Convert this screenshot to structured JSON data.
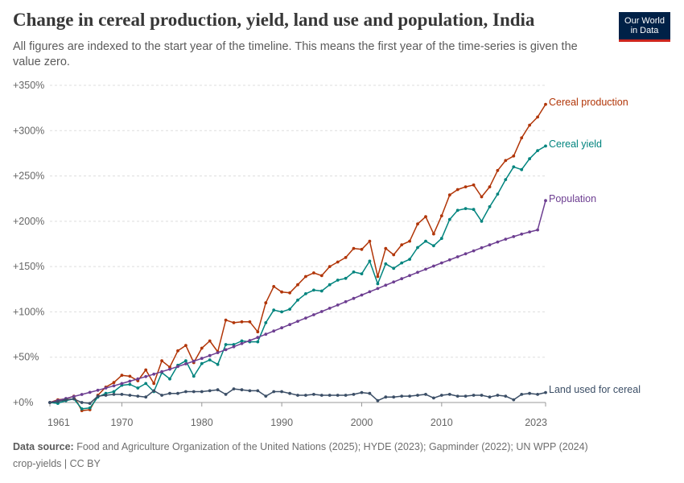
{
  "header": {
    "title": "Change in cereal production, yield, land use and population, India",
    "subtitle": "All figures are indexed to the start year of the timeline. This means the first year of the time-series is given the value zero.",
    "logo_line1": "Our World",
    "logo_line2": "in Data"
  },
  "footer": {
    "source_label": "Data source:",
    "source_text": "Food and Agriculture Organization of the United Nations (2025); HYDE (2023); Gapminder (2022); UN WPP (2024)",
    "credit": "crop-yields | CC BY"
  },
  "chart_data": {
    "type": "line",
    "title": "Change in cereal production, yield, land use and population, India",
    "xlabel": "",
    "ylabel": "",
    "xlim": [
      1961,
      2023
    ],
    "ylim": [
      0,
      350
    ],
    "x_ticks": [
      1961,
      1970,
      1980,
      1990,
      2000,
      2010,
      2023
    ],
    "x_tick_labels": [
      "1961",
      "1970",
      "1980",
      "1990",
      "2000",
      "2010",
      "2023"
    ],
    "y_ticks": [
      0,
      50,
      100,
      150,
      200,
      250,
      300,
      350
    ],
    "y_tick_labels": [
      "+0%",
      "+50%",
      "+100%",
      "+150%",
      "+200%",
      "+250%",
      "+300%",
      "+350%"
    ],
    "grid": "horizontal-dashed",
    "legend": "inline-right",
    "years": [
      1961,
      1962,
      1963,
      1964,
      1965,
      1966,
      1967,
      1968,
      1969,
      1970,
      1971,
      1972,
      1973,
      1974,
      1975,
      1976,
      1977,
      1978,
      1979,
      1980,
      1981,
      1982,
      1983,
      1984,
      1985,
      1986,
      1987,
      1988,
      1989,
      1990,
      1991,
      1992,
      1993,
      1994,
      1995,
      1996,
      1997,
      1998,
      1999,
      2000,
      2001,
      2002,
      2003,
      2004,
      2005,
      2006,
      2007,
      2008,
      2009,
      2010,
      2011,
      2012,
      2013,
      2014,
      2015,
      2016,
      2017,
      2018,
      2019,
      2020,
      2021,
      2022,
      2023
    ],
    "series": [
      {
        "name": "Cereal production",
        "color": "#b13507",
        "values": [
          0,
          3,
          4,
          7,
          -9,
          -8,
          8,
          17,
          22,
          30,
          29,
          24,
          36,
          21,
          46,
          39,
          57,
          63,
          44,
          60,
          68,
          56,
          91,
          88,
          89,
          89,
          78,
          110,
          128,
          122,
          121,
          130,
          139,
          143,
          140,
          150,
          155,
          160,
          170,
          169,
          178,
          139,
          170,
          163,
          174,
          178,
          197,
          205,
          186,
          206,
          229,
          235,
          238,
          240,
          227,
          238,
          256,
          267,
          272,
          292,
          306,
          315,
          329
        ]
      },
      {
        "name": "Cereal yield",
        "color": "#00847e",
        "values": [
          0,
          -1,
          2,
          4,
          -7,
          -6,
          6,
          10,
          12,
          19,
          20,
          16,
          21,
          12,
          33,
          26,
          41,
          46,
          29,
          43,
          47,
          42,
          64,
          64,
          68,
          67,
          67,
          88,
          102,
          100,
          103,
          113,
          120,
          124,
          123,
          130,
          135,
          137,
          144,
          142,
          156,
          131,
          153,
          148,
          154,
          158,
          171,
          178,
          173,
          181,
          202,
          212,
          214,
          213,
          200,
          216,
          230,
          246,
          260,
          257,
          269,
          278,
          283
        ]
      },
      {
        "name": "Population",
        "color": "#6d3e91",
        "values": [
          0,
          2.2,
          4.4,
          6.7,
          8.9,
          11.2,
          13.5,
          16,
          18.4,
          21,
          23.5,
          26,
          28.6,
          31.3,
          34,
          36.8,
          39.7,
          42.6,
          45.6,
          48.7,
          51.8,
          55,
          58.3,
          61.6,
          65,
          68.4,
          71.8,
          75.3,
          78.9,
          82.4,
          86,
          89.6,
          93.2,
          96.8,
          100.4,
          104,
          107.6,
          111.2,
          114.9,
          118.6,
          122.2,
          125.8,
          129.4,
          133,
          136.6,
          140.1,
          143.6,
          147.1,
          150.6,
          154,
          157.4,
          160.8,
          164.1,
          167.4,
          170.7,
          173.9,
          177.1,
          180.2,
          183.1,
          185.8,
          188.2,
          190.5,
          222.8
        ]
      },
      {
        "name": "Land used for cereal",
        "color": "#3b4e66",
        "values": [
          0,
          1,
          3,
          4,
          0,
          -1,
          7,
          8,
          9,
          9,
          8,
          7,
          6,
          13,
          8,
          10,
          10,
          12,
          12,
          12,
          13,
          14,
          9,
          15,
          14,
          13,
          13,
          7,
          12,
          12,
          10,
          8,
          8,
          9,
          8,
          8,
          8,
          8,
          9,
          11,
          10,
          2,
          6,
          6,
          7,
          7,
          8,
          9,
          5,
          8,
          9,
          7,
          7,
          8,
          8,
          6,
          8,
          7,
          3,
          9,
          10,
          9,
          11
        ]
      }
    ],
    "series_labels": [
      "Cereal production",
      "Cereal yield",
      "Population",
      "Land used for cereal"
    ]
  }
}
